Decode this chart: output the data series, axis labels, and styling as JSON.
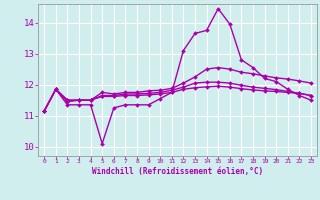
{
  "xlabel": "Windchill (Refroidissement éolien,°C)",
  "background_color": "#d0eeed",
  "grid_color": "#ffffff",
  "line_color": "#aa00aa",
  "x_ticks": [
    0,
    1,
    2,
    3,
    4,
    5,
    6,
    7,
    8,
    9,
    10,
    11,
    12,
    13,
    14,
    15,
    16,
    17,
    18,
    19,
    20,
    21,
    22,
    23
  ],
  "y_ticks": [
    10,
    11,
    12,
    13,
    14
  ],
  "ylim": [
    9.7,
    14.6
  ],
  "xlim": [
    -0.5,
    23.5
  ],
  "lines": [
    {
      "x": [
        0,
        1,
        2,
        3,
        4,
        5,
        6,
        7,
        8,
        9,
        10,
        11,
        12,
        13,
        14,
        15,
        16,
        17,
        18,
        19,
        20,
        21,
        22,
        23
      ],
      "y": [
        11.15,
        11.85,
        11.35,
        11.35,
        11.35,
        10.1,
        11.25,
        11.35,
        11.35,
        11.35,
        11.55,
        11.75,
        13.1,
        13.65,
        13.75,
        14.45,
        13.95,
        12.8,
        12.55,
        12.2,
        12.1,
        11.85,
        11.65,
        11.5
      ],
      "marker": "D",
      "markersize": 2.0,
      "linewidth": 1.0
    },
    {
      "x": [
        0,
        1,
        2,
        3,
        4,
        5,
        6,
        7,
        8,
        9,
        10,
        11,
        12,
        13,
        14,
        15,
        16,
        17,
        18,
        19,
        20,
        21,
        22,
        23
      ],
      "y": [
        11.15,
        11.85,
        11.5,
        11.5,
        11.5,
        11.75,
        11.7,
        11.75,
        11.75,
        11.8,
        11.82,
        11.88,
        12.05,
        12.25,
        12.5,
        12.55,
        12.5,
        12.4,
        12.35,
        12.28,
        12.22,
        12.18,
        12.12,
        12.05
      ],
      "marker": "D",
      "markersize": 2.0,
      "linewidth": 1.0
    },
    {
      "x": [
        0,
        1,
        2,
        3,
        4,
        5,
        6,
        7,
        8,
        9,
        10,
        11,
        12,
        13,
        14,
        15,
        16,
        17,
        18,
        19,
        20,
        21,
        22,
        23
      ],
      "y": [
        11.15,
        11.85,
        11.45,
        11.5,
        11.5,
        11.65,
        11.65,
        11.7,
        11.7,
        11.72,
        11.75,
        11.82,
        11.92,
        12.05,
        12.08,
        12.08,
        12.05,
        11.98,
        11.92,
        11.88,
        11.84,
        11.78,
        11.72,
        11.65
      ],
      "marker": "D",
      "markersize": 2.0,
      "linewidth": 1.0
    },
    {
      "x": [
        0,
        1,
        2,
        3,
        4,
        5,
        6,
        7,
        8,
        9,
        10,
        11,
        12,
        13,
        14,
        15,
        16,
        17,
        18,
        19,
        20,
        21,
        22,
        23
      ],
      "y": [
        11.15,
        11.85,
        11.5,
        11.5,
        11.5,
        11.62,
        11.62,
        11.65,
        11.65,
        11.67,
        11.7,
        11.75,
        11.85,
        11.9,
        11.93,
        11.95,
        11.92,
        11.87,
        11.83,
        11.8,
        11.78,
        11.75,
        11.72,
        11.65
      ],
      "marker": "D",
      "markersize": 2.0,
      "linewidth": 1.0
    }
  ]
}
